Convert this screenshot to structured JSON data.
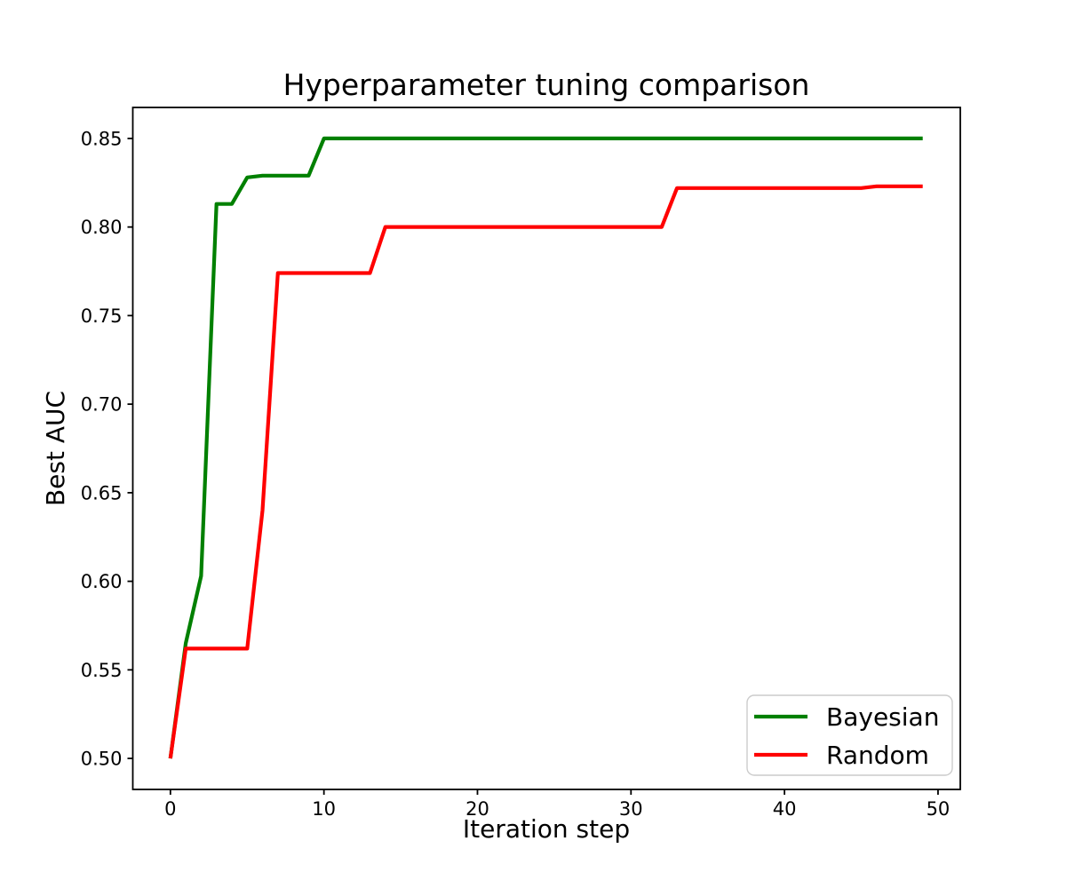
{
  "figure": {
    "background": "#ffffff"
  },
  "chart_data": {
    "type": "line",
    "title": "Hyperparameter tuning comparison",
    "xlabel": "Iteration step",
    "ylabel": "Best AUC",
    "grid": false,
    "legend_position": "lower right",
    "xlim": [
      -2.45,
      51.45
    ],
    "ylim": [
      0.4825,
      0.8675
    ],
    "xticks": [
      0,
      10,
      20,
      30,
      40,
      50
    ],
    "xtick_labels": [
      "0",
      "10",
      "20",
      "30",
      "40",
      "50"
    ],
    "yticks": [
      0.5,
      0.55,
      0.6,
      0.65,
      0.7,
      0.75,
      0.8,
      0.85
    ],
    "ytick_labels": [
      "0.50",
      "0.55",
      "0.60",
      "0.65",
      "0.70",
      "0.75",
      "0.80",
      "0.85"
    ],
    "x": [
      0,
      1,
      2,
      3,
      4,
      5,
      6,
      7,
      8,
      9,
      10,
      11,
      12,
      13,
      14,
      15,
      16,
      17,
      18,
      19,
      20,
      21,
      22,
      23,
      24,
      25,
      26,
      27,
      28,
      29,
      30,
      31,
      32,
      33,
      34,
      35,
      36,
      37,
      38,
      39,
      40,
      41,
      42,
      43,
      44,
      45,
      46,
      47,
      48,
      49
    ],
    "series": [
      {
        "name": "Bayesian",
        "color": "#008000",
        "values": [
          0.5,
          0.565,
          0.603,
          0.813,
          0.813,
          0.828,
          0.829,
          0.829,
          0.829,
          0.829,
          0.85,
          0.85,
          0.85,
          0.85,
          0.85,
          0.85,
          0.85,
          0.85,
          0.85,
          0.85,
          0.85,
          0.85,
          0.85,
          0.85,
          0.85,
          0.85,
          0.85,
          0.85,
          0.85,
          0.85,
          0.85,
          0.85,
          0.85,
          0.85,
          0.85,
          0.85,
          0.85,
          0.85,
          0.85,
          0.85,
          0.85,
          0.85,
          0.85,
          0.85,
          0.85,
          0.85,
          0.85,
          0.85,
          0.85,
          0.85
        ]
      },
      {
        "name": "Random",
        "color": "#ff0000",
        "values": [
          0.5,
          0.562,
          0.562,
          0.562,
          0.562,
          0.562,
          0.64,
          0.774,
          0.774,
          0.774,
          0.774,
          0.774,
          0.774,
          0.774,
          0.8,
          0.8,
          0.8,
          0.8,
          0.8,
          0.8,
          0.8,
          0.8,
          0.8,
          0.8,
          0.8,
          0.8,
          0.8,
          0.8,
          0.8,
          0.8,
          0.8,
          0.8,
          0.8,
          0.822,
          0.822,
          0.822,
          0.822,
          0.822,
          0.822,
          0.822,
          0.822,
          0.822,
          0.822,
          0.822,
          0.822,
          0.822,
          0.823,
          0.823,
          0.823,
          0.823
        ]
      }
    ]
  }
}
